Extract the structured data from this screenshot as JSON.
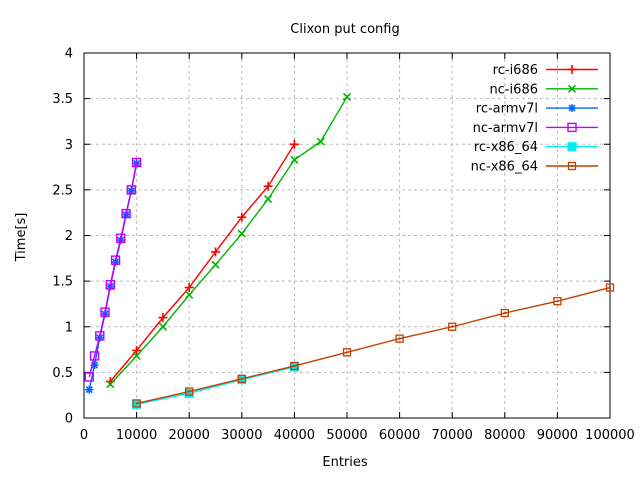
{
  "chart_data": {
    "type": "line",
    "title": "Clixon put config",
    "xlabel": "Entries",
    "ylabel": "Time[s]",
    "xlim": [
      0,
      100000
    ],
    "ylim": [
      0,
      4
    ],
    "xticks": [
      0,
      10000,
      20000,
      30000,
      40000,
      50000,
      60000,
      70000,
      80000,
      90000,
      100000
    ],
    "xtick_labels": [
      "0",
      "10000",
      "20000",
      "30000",
      "40000",
      "50000",
      "60000",
      "70000",
      "80000",
      "90000",
      "100000"
    ],
    "yticks": [
      0,
      0.5,
      1,
      1.5,
      2,
      2.5,
      3,
      3.5,
      4
    ],
    "ytick_labels": [
      "0",
      "0.5",
      "1",
      "1.5",
      "2",
      "2.5",
      "3",
      "3.5",
      "4"
    ],
    "grid": true,
    "grid_color": "#bbbbbb",
    "legend_position": "top-right-inside",
    "series": [
      {
        "name": "rc-i686",
        "color": "#ff0000",
        "marker": "plus",
        "x": [
          5000,
          10000,
          15000,
          20000,
          25000,
          30000,
          35000,
          40000
        ],
        "y": [
          0.4,
          0.74,
          1.1,
          1.43,
          1.82,
          2.2,
          2.54,
          3.0
        ]
      },
      {
        "name": "nc-i686",
        "color": "#00b400",
        "marker": "cross",
        "x": [
          5000,
          10000,
          15000,
          20000,
          25000,
          30000,
          35000,
          40000,
          45000,
          50000
        ],
        "y": [
          0.37,
          0.68,
          1.0,
          1.35,
          1.68,
          2.02,
          2.4,
          2.83,
          3.03,
          3.52
        ]
      },
      {
        "name": "rc-armv7l",
        "color": "#0066ff",
        "marker": "asterisk",
        "x": [
          1000,
          2000,
          3000,
          4000,
          5000,
          6000,
          7000,
          8000,
          9000,
          10000
        ],
        "y": [
          0.31,
          0.58,
          0.88,
          1.14,
          1.44,
          1.71,
          1.95,
          2.23,
          2.49,
          2.79
        ]
      },
      {
        "name": "nc-armv7l",
        "color": "#c000ff",
        "marker": "open-square",
        "x": [
          1000,
          2000,
          3000,
          4000,
          5000,
          6000,
          7000,
          8000,
          9000,
          10000
        ],
        "y": [
          0.45,
          0.68,
          0.9,
          1.16,
          1.46,
          1.73,
          1.97,
          2.24,
          2.5,
          2.8
        ]
      },
      {
        "name": "rc-x86_64",
        "color": "#00eeee",
        "marker": "filled-square",
        "x": [
          10000,
          20000,
          30000,
          40000
        ],
        "y": [
          0.15,
          0.27,
          0.42,
          0.56
        ]
      },
      {
        "name": "nc-x86_64",
        "color": "#c04000",
        "marker": "dotted-square",
        "x": [
          10000,
          20000,
          30000,
          40000,
          50000,
          60000,
          70000,
          80000,
          90000,
          100000
        ],
        "y": [
          0.16,
          0.29,
          0.43,
          0.57,
          0.72,
          0.87,
          1.0,
          1.15,
          1.28,
          1.43
        ]
      }
    ]
  }
}
